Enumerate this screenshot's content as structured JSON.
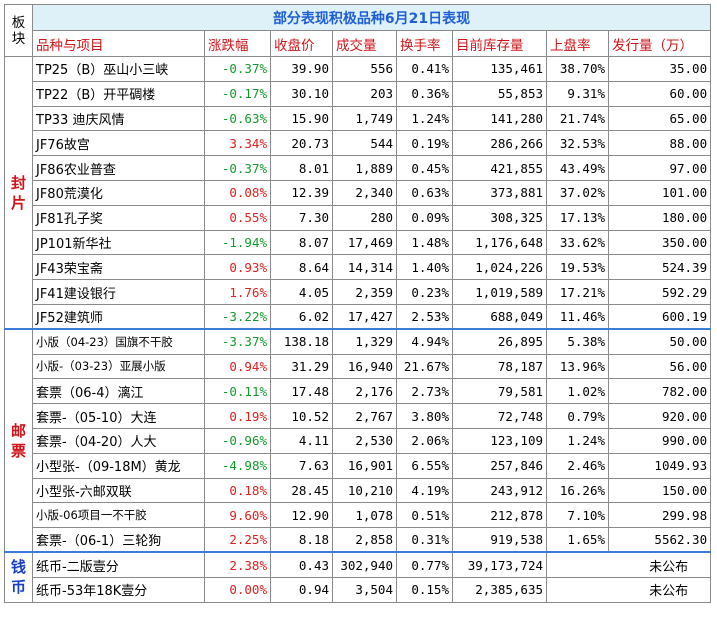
{
  "title": "部分表现积极品种6月21日表现",
  "bankuai_header": "板块",
  "columns": [
    "品种与项目",
    "涨跌幅",
    "收盘价",
    "成交量",
    "换手率",
    "目前库存量",
    "上盘率",
    "发行量（万）"
  ],
  "sections": [
    {
      "label": "封片",
      "color": "#d0141a",
      "rows": [
        {
          "name": "TP25（B）巫山小三峡",
          "change": "-0.37%",
          "close": "39.90",
          "volume": "556",
          "turnover": "0.41%",
          "stock": "135,461",
          "listing": "38.70%",
          "issue": "35.00"
        },
        {
          "name": "TP22（B）开平碉楼",
          "change": "-0.17%",
          "close": "30.10",
          "volume": "203",
          "turnover": "0.36%",
          "stock": "55,853",
          "listing": "9.31%",
          "issue": "60.00"
        },
        {
          "name": "TP33 迪庆风情",
          "change": "-0.63%",
          "close": "15.90",
          "volume": "1,749",
          "turnover": "1.24%",
          "stock": "141,280",
          "listing": "21.74%",
          "issue": "65.00"
        },
        {
          "name": "JF76故宫",
          "change": "3.34%",
          "close": "20.73",
          "volume": "544",
          "turnover": "0.19%",
          "stock": "286,266",
          "listing": "32.53%",
          "issue": "88.00"
        },
        {
          "name": "JF86农业普查",
          "change": "-0.37%",
          "close": "8.01",
          "volume": "1,889",
          "turnover": "0.45%",
          "stock": "421,855",
          "listing": "43.49%",
          "issue": "97.00"
        },
        {
          "name": "JF80荒漠化",
          "change": "0.08%",
          "close": "12.39",
          "volume": "2,340",
          "turnover": "0.63%",
          "stock": "373,881",
          "listing": "37.02%",
          "issue": "101.00"
        },
        {
          "name": "JF81孔子奖",
          "change": "0.55%",
          "close": "7.30",
          "volume": "280",
          "turnover": "0.09%",
          "stock": "308,325",
          "listing": "17.13%",
          "issue": "180.00"
        },
        {
          "name": "JP101新华社",
          "change": "-1.94%",
          "close": "8.07",
          "volume": "17,469",
          "turnover": "1.48%",
          "stock": "1,176,648",
          "listing": "33.62%",
          "issue": "350.00"
        },
        {
          "name": "JF43荣宝斋",
          "change": "0.93%",
          "close": "8.64",
          "volume": "14,314",
          "turnover": "1.40%",
          "stock": "1,024,226",
          "listing": "19.53%",
          "issue": "524.39"
        },
        {
          "name": "JF41建设银行",
          "change": "1.76%",
          "close": "4.05",
          "volume": "2,359",
          "turnover": "0.23%",
          "stock": "1,019,589",
          "listing": "17.21%",
          "issue": "592.29"
        },
        {
          "name": "JF52建筑师",
          "change": "-3.22%",
          "close": "6.02",
          "volume": "17,427",
          "turnover": "2.53%",
          "stock": "688,049",
          "listing": "11.46%",
          "issue": "600.19"
        }
      ]
    },
    {
      "label": "邮票",
      "color": "#d0141a",
      "rows": [
        {
          "name": "小版（04-23）国旗不干胶",
          "small": true,
          "change": "-3.37%",
          "close": "138.18",
          "volume": "1,329",
          "turnover": "4.94%",
          "stock": "26,895",
          "listing": "5.38%",
          "issue": "50.00"
        },
        {
          "name": "小版-（03-23）亚展小版",
          "small": true,
          "change": "0.94%",
          "close": "31.29",
          "volume": "16,940",
          "turnover": "21.67%",
          "stock": "78,187",
          "listing": "13.96%",
          "issue": "56.00"
        },
        {
          "name": "套票（06-4）漓江",
          "change": "-0.11%",
          "close": "17.48",
          "volume": "2,176",
          "turnover": "2.73%",
          "stock": "79,581",
          "listing": "1.02%",
          "issue": "782.00"
        },
        {
          "name": "套票-（05-10）大连",
          "change": "0.19%",
          "close": "10.52",
          "volume": "2,767",
          "turnover": "3.80%",
          "stock": "72,748",
          "listing": "0.79%",
          "issue": "920.00"
        },
        {
          "name": "套票-（04-20）人大",
          "change": "-0.96%",
          "close": "4.11",
          "volume": "2,530",
          "turnover": "2.06%",
          "stock": "123,109",
          "listing": "1.24%",
          "issue": "990.00"
        },
        {
          "name": "小型张-（09-18M）黄龙",
          "change": "-4.98%",
          "close": "7.63",
          "volume": "16,901",
          "turnover": "6.55%",
          "stock": "257,846",
          "listing": "2.46%",
          "issue": "1049.93"
        },
        {
          "name": "小型张-六邮双联",
          "change": "0.18%",
          "close": "28.45",
          "volume": "10,210",
          "turnover": "4.19%",
          "stock": "243,912",
          "listing": "16.26%",
          "issue": "150.00"
        },
        {
          "name": "小版-06项目一不干胶",
          "small": true,
          "change": "9.60%",
          "close": "12.90",
          "volume": "1,078",
          "turnover": "0.51%",
          "stock": "212,878",
          "listing": "7.10%",
          "issue": "299.98"
        },
        {
          "name": "套票-（06-1）三轮狗",
          "change": "2.25%",
          "close": "8.18",
          "volume": "2,858",
          "turnover": "0.31%",
          "stock": "919,538",
          "listing": "1.65%",
          "issue": "5562.30"
        }
      ]
    },
    {
      "label": "钱币",
      "color": "#1a3fc7",
      "rows": [
        {
          "name": "纸币-二版壹分",
          "change": "2.38%",
          "close": "0.43",
          "volume": "302,940",
          "turnover": "0.77%",
          "stock": "39,173,724",
          "listing": "",
          "issue": "未公布",
          "merged": true
        },
        {
          "name": "纸币-53年18K壹分",
          "change": "0.00%",
          "close": "0.94",
          "volume": "3,504",
          "turnover": "0.15%",
          "stock": "2,385,635",
          "listing": "",
          "issue": "未公布",
          "merged": true
        }
      ]
    }
  ]
}
